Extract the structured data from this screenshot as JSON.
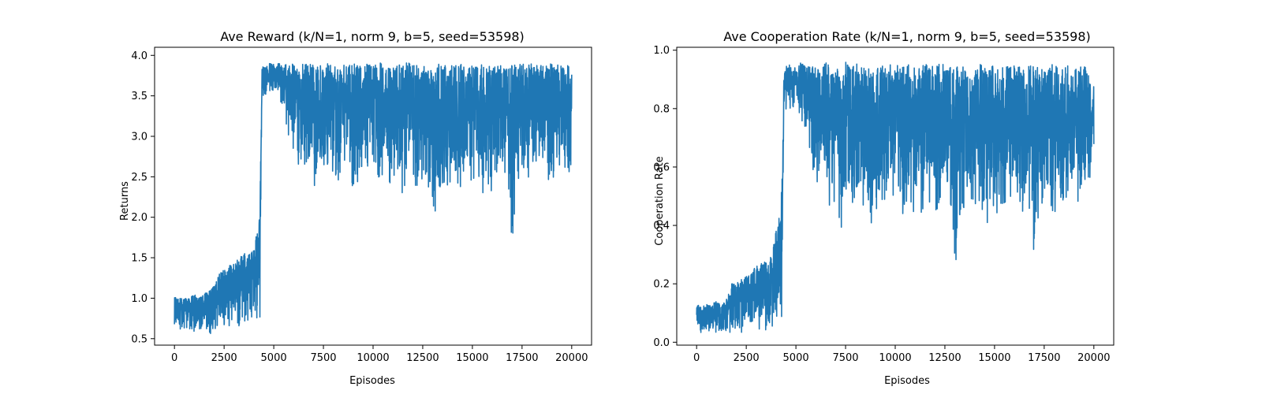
{
  "chart_data": [
    {
      "type": "line",
      "title": "Ave Reward (k/N=1, norm 9, b=5, seed=53598)",
      "xlabel": "Episodes",
      "ylabel": "Returns",
      "xlim": [
        -1000,
        21000
      ],
      "ylim": [
        0.42,
        4.1
      ],
      "xticks": [
        0,
        2500,
        5000,
        7500,
        10000,
        12500,
        15000,
        17500,
        20000
      ],
      "yticks": [
        0.5,
        1.0,
        1.5,
        2.0,
        2.5,
        3.0,
        3.5,
        4.0
      ],
      "ytick_labels": [
        "0.5",
        "1.0",
        "1.5",
        "2.0",
        "2.5",
        "3.0",
        "3.5",
        "4.0"
      ],
      "grid": false,
      "color": "#1f77b4",
      "series": [
        {
          "envelope_x": [
            0,
            250,
            500,
            750,
            1000,
            1250,
            1500,
            1750,
            2000,
            2250,
            2500,
            2750,
            3000,
            3250,
            3500,
            3750,
            4000,
            4200,
            4300,
            4400,
            4500,
            4750,
            5000,
            5250,
            5500,
            5750,
            6000,
            6250,
            6500,
            6750,
            7000,
            7250,
            7500,
            7750,
            8000,
            8250,
            8500,
            8750,
            9000,
            9250,
            9500,
            9750,
            10000,
            10250,
            10500,
            10750,
            11000,
            11250,
            11500,
            11750,
            12000,
            12250,
            12500,
            12750,
            13000,
            13250,
            13500,
            13750,
            14000,
            14250,
            14500,
            14750,
            15000,
            15250,
            15500,
            15750,
            16000,
            16250,
            16500,
            16750,
            17000,
            17250,
            17500,
            17750,
            18000,
            18250,
            18500,
            18750,
            19000,
            19250,
            19500,
            19750,
            20000
          ],
          "high": [
            1.05,
            1.0,
            1.02,
            1.0,
            1.05,
            1.0,
            1.05,
            1.1,
            1.15,
            1.3,
            1.35,
            1.4,
            1.45,
            1.5,
            1.55,
            1.6,
            1.6,
            1.9,
            2.0,
            3.85,
            3.88,
            3.9,
            3.9,
            3.9,
            3.88,
            3.9,
            3.9,
            3.88,
            3.9,
            3.9,
            3.88,
            3.9,
            3.88,
            3.9,
            3.9,
            3.88,
            3.9,
            3.9,
            3.9,
            3.88,
            3.9,
            3.92,
            3.9,
            3.9,
            3.92,
            3.9,
            3.9,
            3.88,
            3.9,
            3.92,
            3.9,
            3.88,
            3.9,
            3.88,
            3.9,
            3.9,
            3.88,
            3.9,
            3.88,
            3.9,
            3.9,
            3.88,
            3.9,
            3.88,
            3.9,
            3.88,
            3.9,
            3.88,
            3.9,
            3.88,
            3.9,
            3.88,
            3.9,
            3.88,
            3.9,
            3.88,
            3.9,
            3.88,
            3.9,
            3.88,
            3.9,
            3.88,
            3.85
          ],
          "low": [
            0.65,
            0.6,
            0.58,
            0.6,
            0.58,
            0.55,
            0.6,
            0.55,
            0.6,
            0.6,
            0.62,
            0.65,
            0.6,
            0.62,
            0.65,
            0.65,
            0.7,
            0.7,
            0.7,
            3.5,
            3.5,
            3.52,
            3.55,
            3.5,
            3.3,
            3.0,
            2.6,
            2.6,
            2.5,
            2.7,
            2.4,
            1.9,
            2.5,
            2.6,
            2.5,
            2.4,
            2.6,
            2.4,
            2.3,
            2.4,
            2.3,
            2.5,
            2.6,
            2.3,
            2.5,
            2.4,
            2.3,
            2.2,
            2.2,
            2.3,
            2.4,
            2.3,
            2.4,
            2.4,
            1.6,
            2.3,
            2.4,
            2.3,
            2.5,
            2.3,
            2.4,
            2.2,
            2.4,
            2.3,
            2.2,
            2.4,
            2.3,
            2.3,
            2.4,
            2.5,
            1.6,
            2.4,
            2.5,
            2.4,
            2.5,
            2.6,
            2.6,
            2.4,
            2.3,
            2.6,
            2.5,
            2.4,
            2.7
          ]
        }
      ]
    },
    {
      "type": "line",
      "title": "Ave Cooperation Rate (k/N=1, norm 9, b=5, seed=53598)",
      "xlabel": "Episodes",
      "ylabel": "Cooperation Rate",
      "xlim": [
        -1000,
        21000
      ],
      "ylim": [
        -0.01,
        1.01
      ],
      "xticks": [
        0,
        2500,
        5000,
        7500,
        10000,
        12500,
        15000,
        17500,
        20000
      ],
      "yticks": [
        0.0,
        0.2,
        0.4,
        0.6,
        0.8,
        1.0
      ],
      "ytick_labels": [
        "0.0",
        "0.2",
        "0.4",
        "0.6",
        "0.8",
        "1.0"
      ],
      "grid": false,
      "color": "#1f77b4",
      "series": [
        {
          "envelope_x": [
            0,
            250,
            500,
            750,
            1000,
            1250,
            1500,
            1750,
            2000,
            2250,
            2500,
            2750,
            3000,
            3250,
            3500,
            3750,
            4000,
            4200,
            4300,
            4400,
            4500,
            4750,
            5000,
            5250,
            5500,
            5750,
            6000,
            6250,
            6500,
            6750,
            7000,
            7250,
            7500,
            7750,
            8000,
            8250,
            8500,
            8750,
            9000,
            9250,
            9500,
            9750,
            10000,
            10250,
            10500,
            10750,
            11000,
            11250,
            11500,
            11750,
            12000,
            12250,
            12500,
            12750,
            13000,
            13250,
            13500,
            13750,
            14000,
            14250,
            14500,
            14750,
            15000,
            15250,
            15500,
            15750,
            16000,
            16250,
            16500,
            16750,
            17000,
            17250,
            17500,
            17750,
            18000,
            18250,
            18500,
            18750,
            19000,
            19250,
            19500,
            19750,
            20000
          ],
          "high": [
            0.13,
            0.12,
            0.13,
            0.13,
            0.14,
            0.13,
            0.15,
            0.2,
            0.2,
            0.22,
            0.23,
            0.24,
            0.26,
            0.27,
            0.28,
            0.3,
            0.38,
            0.45,
            0.56,
            0.93,
            0.95,
            0.95,
            0.94,
            0.96,
            0.95,
            0.94,
            0.95,
            0.93,
            0.96,
            0.94,
            0.95,
            0.93,
            0.96,
            0.94,
            0.95,
            0.96,
            0.94,
            0.95,
            0.93,
            0.96,
            0.94,
            0.95,
            0.96,
            0.95,
            0.94,
            0.96,
            0.95,
            0.94,
            0.96,
            0.95,
            0.94,
            0.96,
            0.95,
            0.94,
            0.95,
            0.96,
            0.94,
            0.95,
            0.94,
            0.95,
            0.96,
            0.94,
            0.95,
            0.94,
            0.95,
            0.94,
            0.96,
            0.95,
            0.94,
            0.95,
            0.96,
            0.94,
            0.95,
            0.94,
            0.96,
            0.95,
            0.94,
            0.95,
            0.96,
            0.94,
            0.95,
            0.94,
            0.92
          ],
          "low": [
            0.04,
            0.03,
            0.03,
            0.03,
            0.03,
            0.03,
            0.03,
            0.03,
            0.03,
            0.03,
            0.03,
            0.03,
            0.03,
            0.03,
            0.03,
            0.03,
            0.05,
            0.06,
            0.06,
            0.78,
            0.78,
            0.8,
            0.8,
            0.75,
            0.7,
            0.6,
            0.52,
            0.48,
            0.45,
            0.46,
            0.4,
            0.38,
            0.45,
            0.48,
            0.45,
            0.44,
            0.46,
            0.4,
            0.43,
            0.42,
            0.4,
            0.44,
            0.45,
            0.42,
            0.44,
            0.4,
            0.42,
            0.39,
            0.38,
            0.4,
            0.45,
            0.43,
            0.45,
            0.43,
            0.24,
            0.41,
            0.44,
            0.42,
            0.45,
            0.43,
            0.42,
            0.4,
            0.44,
            0.38,
            0.39,
            0.44,
            0.42,
            0.4,
            0.43,
            0.42,
            0.27,
            0.45,
            0.46,
            0.43,
            0.44,
            0.45,
            0.42,
            0.43,
            0.44,
            0.46,
            0.44,
            0.42,
            0.56
          ]
        }
      ]
    }
  ]
}
